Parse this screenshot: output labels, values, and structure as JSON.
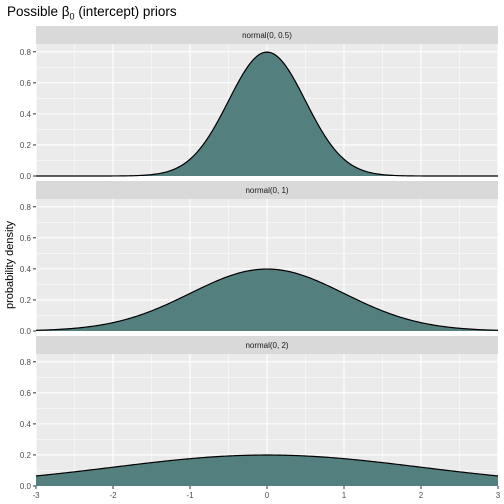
{
  "title_parts": {
    "prefix": "Possible ",
    "symbol": "β",
    "subscript": "0",
    "suffix": " (intercept) priors"
  },
  "chart_data": {
    "type": "area",
    "ylabel": "probability density",
    "xlabel": "",
    "xlim": [
      -3,
      3
    ],
    "ylim": [
      0,
      0.85
    ],
    "x_ticks": [
      "-3",
      "-2",
      "-1",
      "0",
      "1",
      "2",
      "3"
    ],
    "y_ticks": [
      "0.0",
      "0.2",
      "0.4",
      "0.6",
      "0.8"
    ],
    "grid": true,
    "legend": "none",
    "fill_color": "#537f7f",
    "line_color": "#000000",
    "panel_bg": "#ebebeb",
    "strip_bg": "#d9d9d9",
    "panels": [
      {
        "label": "normal(0, 0.5)",
        "mean": 0,
        "sd": 0.5,
        "x": [
          -3,
          -2.5,
          -2,
          -1.5,
          -1,
          -0.75,
          -0.5,
          -0.25,
          0,
          0.25,
          0.5,
          0.75,
          1,
          1.5,
          2,
          2.5,
          3
        ],
        "y": [
          0.0,
          0.0,
          0.0003,
          0.0089,
          0.108,
          0.259,
          0.484,
          0.704,
          0.798,
          0.704,
          0.484,
          0.259,
          0.108,
          0.0089,
          0.0003,
          0.0,
          0.0
        ]
      },
      {
        "label": "normal(0, 1)",
        "mean": 0,
        "sd": 1,
        "x": [
          -3,
          -2.5,
          -2,
          -1.5,
          -1,
          -0.5,
          0,
          0.5,
          1,
          1.5,
          2,
          2.5,
          3
        ],
        "y": [
          0.0044,
          0.0175,
          0.054,
          0.13,
          0.242,
          0.352,
          0.399,
          0.352,
          0.242,
          0.13,
          0.054,
          0.0175,
          0.0044
        ]
      },
      {
        "label": "normal(0, 2)",
        "mean": 0,
        "sd": 2,
        "x": [
          -3,
          -2,
          -1,
          0,
          1,
          2,
          3
        ],
        "y": [
          0.0648,
          0.121,
          0.176,
          0.199,
          0.176,
          0.121,
          0.0648
        ]
      }
    ]
  }
}
